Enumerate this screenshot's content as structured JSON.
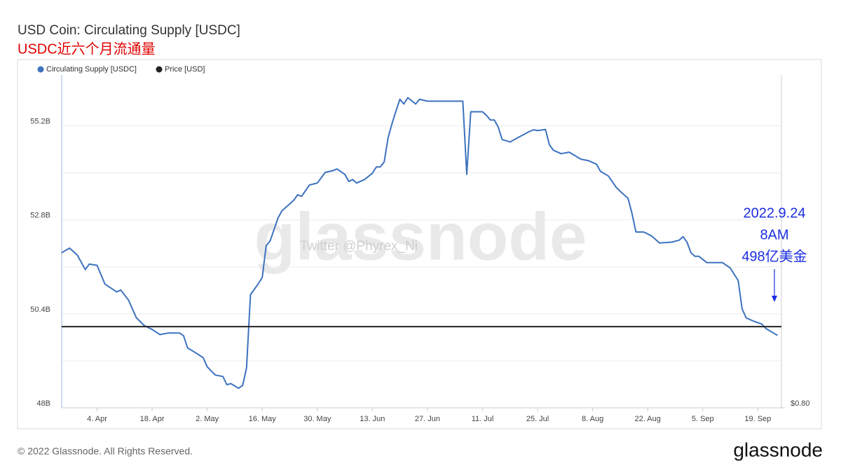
{
  "chart_data": {
    "type": "line",
    "title": "USD Coin: Circulating Supply [USDC]",
    "subtitle": "USDC近六个月流通量",
    "xlim": [
      "03-26",
      "09-25"
    ],
    "xticks": [
      {
        "value": "04-04",
        "label": "4. Apr"
      },
      {
        "value": "04-18",
        "label": "18. Apr"
      },
      {
        "value": "05-02",
        "label": "2. May"
      },
      {
        "value": "05-16",
        "label": "16. May"
      },
      {
        "value": "05-30",
        "label": "30. May"
      },
      {
        "value": "06-13",
        "label": "13. Jun"
      },
      {
        "value": "06-27",
        "label": "27. Jun"
      },
      {
        "value": "07-11",
        "label": "11. Jul"
      },
      {
        "value": "07-25",
        "label": "25. Jul"
      },
      {
        "value": "08-08",
        "label": "8. Aug"
      },
      {
        "value": "08-22",
        "label": "22. Aug"
      },
      {
        "value": "09-05",
        "label": "5. Sep"
      },
      {
        "value": "09-19",
        "label": "19. Sep"
      }
    ],
    "ylim": [
      48,
      56.5
    ],
    "yticks": [
      {
        "value": 48,
        "label": "48B"
      },
      {
        "value": 50.4,
        "label": "50.4B"
      },
      {
        "value": 52.8,
        "label": "52.8B"
      },
      {
        "value": 55.2,
        "label": "55.2B"
      }
    ],
    "ygrid_minor": [
      49.2,
      51.6,
      54
    ],
    "y2lim": [
      0.8,
      1.62
    ],
    "y2ticks": [
      {
        "value": 0.8,
        "label": "$0.80"
      }
    ],
    "grid": true,
    "legend": "top-left",
    "series": [
      {
        "name": "Circulating Supply [USDC]",
        "color": "#3d72bf",
        "x": [
          "03-26",
          "03-28",
          "03-30",
          "04-01",
          "04-02",
          "04-04",
          "04-06",
          "04-09",
          "04-10",
          "04-12",
          "04-14",
          "04-16",
          "04-18",
          "04-20",
          "04-22",
          "04-25",
          "04-26",
          "04-27",
          "04-29",
          "05-01",
          "05-02",
          "05-04",
          "05-06",
          "05-07",
          "05-08",
          "05-10",
          "05-11",
          "05-12",
          "05-13",
          "05-15",
          "05-16",
          "05-17",
          "05-18",
          "05-20",
          "05-21",
          "05-23",
          "05-24",
          "05-25",
          "05-26",
          "05-28",
          "05-30",
          "06-01",
          "06-03",
          "06-04",
          "06-06",
          "06-07",
          "06-08",
          "06-09",
          "06-11",
          "06-13",
          "06-14",
          "06-15",
          "06-16",
          "06-17",
          "06-18",
          "06-19",
          "06-20",
          "06-21",
          "06-22",
          "06-24",
          "06-25",
          "06-27",
          "07-02",
          "07-06",
          "07-07",
          "07-08",
          "07-11",
          "07-12",
          "07-13",
          "07-14",
          "07-15",
          "07-16",
          "07-18",
          "07-20",
          "07-23",
          "07-24",
          "07-25",
          "07-27",
          "07-28",
          "07-29",
          "07-31",
          "08-02",
          "08-05",
          "08-07",
          "08-09",
          "08-10",
          "08-12",
          "08-14",
          "08-15",
          "08-17",
          "08-18",
          "08-19",
          "08-21",
          "08-23",
          "08-25",
          "08-28",
          "08-30",
          "08-31",
          "09-01",
          "09-02",
          "09-03",
          "09-04",
          "09-06",
          "09-10",
          "09-12",
          "09-14",
          "09-15",
          "09-16",
          "09-18",
          "09-20",
          "09-21",
          "09-23",
          "09-24"
        ],
        "values": [
          51.96,
          52.08,
          51.9,
          51.53,
          51.67,
          51.64,
          51.16,
          50.96,
          51.01,
          50.75,
          50.3,
          50.1,
          50.0,
          49.87,
          49.91,
          49.91,
          49.84,
          49.53,
          49.41,
          49.28,
          49.05,
          48.84,
          48.8,
          48.59,
          48.62,
          48.5,
          48.57,
          49.02,
          50.89,
          51.17,
          51.33,
          52.14,
          52.26,
          52.85,
          53.03,
          53.21,
          53.3,
          53.44,
          53.4,
          53.69,
          53.74,
          54.01,
          54.06,
          54.1,
          53.96,
          53.78,
          53.83,
          53.74,
          53.83,
          53.99,
          54.15,
          54.15,
          54.28,
          54.9,
          55.26,
          55.58,
          55.88,
          55.76,
          55.92,
          55.76,
          55.88,
          55.83,
          55.83,
          55.83,
          53.96,
          55.56,
          55.56,
          55.47,
          55.35,
          55.35,
          55.17,
          54.85,
          54.79,
          54.9,
          55.06,
          55.1,
          55.08,
          55.11,
          54.72,
          54.58,
          54.49,
          54.53,
          54.35,
          54.31,
          54.22,
          54.04,
          53.92,
          53.63,
          53.53,
          53.35,
          52.97,
          52.49,
          52.49,
          52.39,
          52.21,
          52.23,
          52.28,
          52.37,
          52.23,
          51.96,
          51.87,
          51.87,
          51.71,
          51.71,
          51.57,
          51.25,
          50.53,
          50.3,
          50.21,
          50.14,
          50.03,
          49.91,
          49.85
        ]
      },
      {
        "name": "Price [USD]",
        "color": "#222222",
        "axis": "y2",
        "x": [
          "03-26",
          "05-01",
          "06-15",
          "08-01",
          "09-25"
        ],
        "values": [
          1.0,
          1.0,
          1.0,
          1.0,
          1.0
        ]
      }
    ],
    "annotations": [
      "2022.9.24",
      "8AM",
      "498亿美金"
    ],
    "watermark": "glassnode",
    "watermark_credit": "Twitter @Phyrex_Ni",
    "footer": "© 2022 Glassnode. All Rights Reserved.",
    "logo": "glassnode"
  }
}
